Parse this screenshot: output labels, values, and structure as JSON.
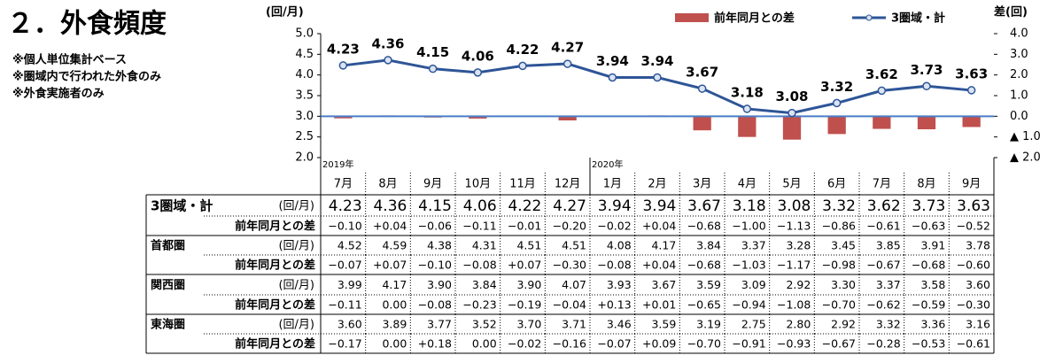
{
  "header": {
    "title": "２．外食頻度",
    "notes": [
      "※個人単位集計ベース",
      "※圏域内で行われた外食のみ",
      "※外食実施者のみ"
    ]
  },
  "chart_data": {
    "type": "bar-line",
    "ylabel": "(回/月)",
    "y2label": "差(回)",
    "years": [
      "2019年",
      null,
      null,
      null,
      null,
      null,
      "2020年",
      null,
      null,
      null,
      null,
      null,
      null,
      null,
      null
    ],
    "categories": [
      "7月",
      "8月",
      "9月",
      "10月",
      "11月",
      "12月",
      "1月",
      "2月",
      "3月",
      "4月",
      "5月",
      "6月",
      "7月",
      "8月",
      "9月"
    ],
    "ylim": [
      2,
      5
    ],
    "yticks": [
      {
        "value": 2,
        "label": "2.0"
      },
      {
        "value": 2.5,
        "label": "2.5"
      },
      {
        "value": 3,
        "label": "3.0"
      },
      {
        "value": 3.5,
        "label": "3.5"
      },
      {
        "value": 4,
        "label": "4.0"
      },
      {
        "value": 4.5,
        "label": "4.5"
      },
      {
        "value": 5,
        "label": "5.0"
      }
    ],
    "y2lim": [
      -2,
      4
    ],
    "y2ticks": [
      {
        "value": -2,
        "label": "▲ 2.0"
      },
      {
        "value": -1,
        "label": "▲ 1.0"
      },
      {
        "value": 0,
        "label": "0.0"
      },
      {
        "value": 1,
        "label": "1.0"
      },
      {
        "value": 2,
        "label": "2.0"
      },
      {
        "value": 3,
        "label": "3.0"
      },
      {
        "value": 4,
        "label": "4.0"
      }
    ],
    "legend": "top-right",
    "series": [
      {
        "name": "前年同月との差",
        "kind": "bar",
        "axis": "y2",
        "color": "#c0504d",
        "values": [
          -0.1,
          0.04,
          -0.06,
          -0.11,
          -0.01,
          -0.2,
          -0.02,
          0.04,
          -0.68,
          -1.0,
          -1.13,
          -0.86,
          -0.61,
          -0.63,
          -0.52
        ]
      },
      {
        "name": "3圏域・計",
        "kind": "line",
        "color": "#2e5597",
        "values": [
          4.23,
          4.36,
          4.15,
          4.06,
          4.22,
          4.27,
          3.94,
          3.94,
          3.67,
          3.18,
          3.08,
          3.32,
          3.62,
          3.73,
          3.63
        ]
      }
    ]
  },
  "table": {
    "rows": [
      {
        "label": "3圏域・計",
        "unit": "(回/月)",
        "values": [
          "4.23",
          "4.36",
          "4.15",
          "4.06",
          "4.22",
          "4.27",
          "3.94",
          "3.94",
          "3.67",
          "3.18",
          "3.08",
          "3.32",
          "3.62",
          "3.73",
          "3.63"
        ]
      },
      {
        "label": "前年同月との差",
        "values": [
          "−0.10",
          "+0.04",
          "−0.06",
          "−0.11",
          "−0.01",
          "−0.20",
          "−0.02",
          "+0.04",
          "−0.68",
          "−1.00",
          "−1.13",
          "−0.86",
          "−0.61",
          "−0.63",
          "−0.52"
        ]
      },
      {
        "label": "首都圏",
        "unit": "(回/月)",
        "values": [
          "4.52",
          "4.59",
          "4.38",
          "4.31",
          "4.51",
          "4.51",
          "4.08",
          "4.17",
          "3.84",
          "3.37",
          "3.28",
          "3.45",
          "3.85",
          "3.91",
          "3.78"
        ]
      },
      {
        "label": "前年同月との差",
        "values": [
          "−0.07",
          "+0.07",
          "−0.10",
          "−0.08",
          "+0.07",
          "−0.30",
          "−0.08",
          "+0.04",
          "−0.68",
          "−1.03",
          "−1.17",
          "−0.98",
          "−0.67",
          "−0.68",
          "−0.60"
        ]
      },
      {
        "label": "関西圏",
        "unit": "(回/月)",
        "values": [
          "3.99",
          "4.17",
          "3.90",
          "3.84",
          "3.90",
          "4.07",
          "3.93",
          "3.67",
          "3.59",
          "3.09",
          "2.92",
          "3.30",
          "3.37",
          "3.58",
          "3.60"
        ]
      },
      {
        "label": "前年同月との差",
        "values": [
          "−0.11",
          "0.00",
          "−0.08",
          "−0.23",
          "−0.19",
          "−0.04",
          "+0.13",
          "+0.01",
          "−0.65",
          "−0.94",
          "−1.08",
          "−0.70",
          "−0.62",
          "−0.59",
          "−0.30"
        ]
      },
      {
        "label": "東海圏",
        "unit": "(回/月)",
        "values": [
          "3.60",
          "3.89",
          "3.77",
          "3.52",
          "3.70",
          "3.71",
          "3.46",
          "3.59",
          "3.19",
          "2.75",
          "2.80",
          "2.92",
          "3.32",
          "3.36",
          "3.16"
        ]
      },
      {
        "label": "前年同月との差",
        "values": [
          "−0.17",
          "0.00",
          "+0.18",
          "0.00",
          "−0.02",
          "−0.16",
          "−0.07",
          "+0.09",
          "−0.70",
          "−0.91",
          "−0.93",
          "−0.67",
          "−0.28",
          "−0.53",
          "−0.61"
        ]
      }
    ]
  }
}
